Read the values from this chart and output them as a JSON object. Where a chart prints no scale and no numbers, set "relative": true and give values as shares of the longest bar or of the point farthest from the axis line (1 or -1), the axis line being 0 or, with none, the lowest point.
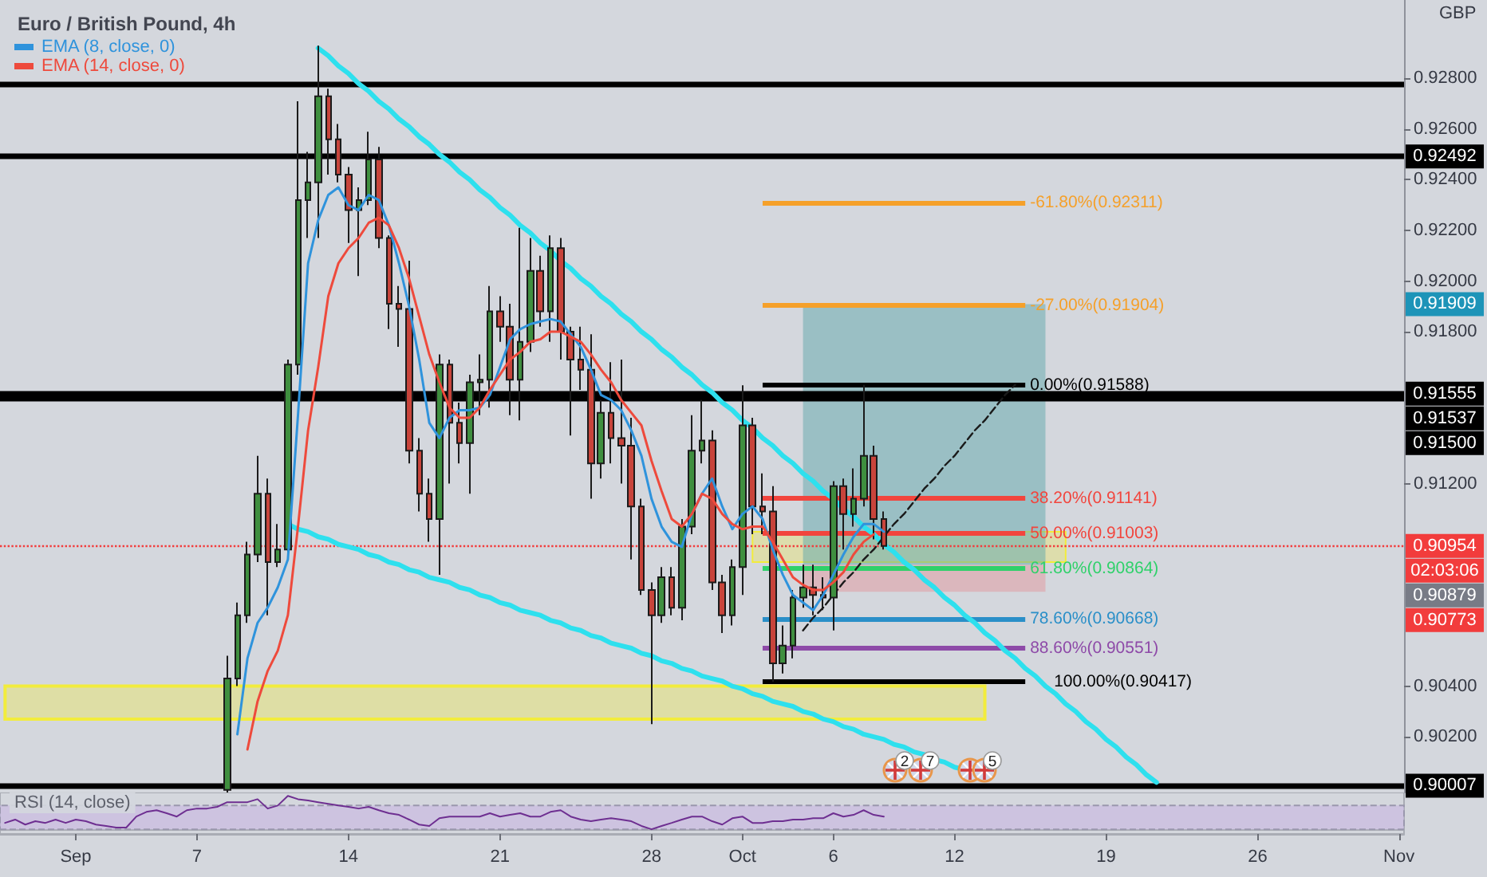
{
  "chart_data": [
    {
      "type": "candlestick",
      "title": "Euro / British Pound, 4h",
      "ylabel": "GBP",
      "legend": "top left",
      "marker": "none",
      "categories": [
        null,
        null,
        null,
        null,
        null,
        null,
        null,
        "Sep",
        null,
        null,
        null,
        null,
        null,
        null,
        null,
        null,
        null,
        null,
        null,
        "7",
        null,
        null,
        null,
        null,
        null,
        null,
        null,
        null,
        null,
        null,
        null,
        null,
        null,
        null,
        "14",
        null,
        null,
        null,
        null,
        null,
        null,
        null,
        null,
        null,
        null,
        null,
        null,
        null,
        null,
        "21",
        null,
        null,
        null,
        null,
        null,
        null,
        null,
        null,
        null,
        null,
        null,
        null,
        null,
        null,
        "28",
        null,
        null,
        null,
        null,
        null,
        null,
        null,
        null,
        "Oct",
        null,
        null,
        null,
        null,
        null,
        null,
        null,
        null,
        "6",
        null,
        null,
        null,
        null,
        null,
        null,
        null,
        null,
        null,
        null,
        null,
        "12",
        null,
        null,
        null,
        null,
        null,
        null,
        null,
        null,
        null,
        null,
        null,
        null,
        null,
        null,
        "19",
        null,
        null,
        null,
        null,
        null,
        null,
        null,
        null,
        null,
        null,
        null,
        null,
        null,
        null,
        "26",
        null,
        null,
        null,
        null,
        null,
        null,
        null,
        null,
        null,
        null,
        null,
        null,
        null,
        "Nov"
      ],
      "ylim": [
        0.8998,
        0.9311
      ],
      "yticks": [
        {
          "value": 0.902,
          "label": "0.90200"
        },
        {
          "value": 0.904,
          "label": "0.90400"
        },
        {
          "value": 0.912,
          "label": "0.91200"
        },
        {
          "value": 0.918,
          "label": "0.91800"
        },
        {
          "value": 0.92,
          "label": "0.92000"
        },
        {
          "value": 0.922,
          "label": "0.92200"
        },
        {
          "value": 0.924,
          "label": "0.92400"
        },
        {
          "value": 0.926,
          "label": "0.92600"
        },
        {
          "value": 0.928,
          "label": "0.92800"
        }
      ],
      "series": [
        {
          "ohlc": [
            null,
            null,
            null,
            null,
            null,
            null,
            null,
            null,
            null,
            null,
            null,
            null,
            null,
            null,
            null,
            null,
            null,
            null,
            null,
            null,
            null,
            null,
            [
              0.8999,
              0.9052,
              0.8998,
              0.9043
            ],
            [
              0.9043,
              0.9073,
              0.904,
              0.9068
            ],
            [
              0.9068,
              0.9097,
              0.9065,
              0.9092
            ],
            [
              0.9092,
              0.9131,
              0.9089,
              0.9116
            ],
            [
              0.9116,
              0.9122,
              0.9068,
              0.9089
            ],
            [
              0.9089,
              0.9104,
              0.9087,
              0.9094
            ],
            [
              0.9094,
              0.9169,
              0.9092,
              0.9167
            ],
            [
              0.9167,
              0.9271,
              0.9163,
              0.9232
            ],
            [
              0.9232,
              0.9251,
              0.9217,
              0.9239
            ],
            [
              0.9239,
              0.9293,
              0.9217,
              0.9273
            ],
            [
              0.9273,
              0.9276,
              0.9242,
              0.9256
            ],
            [
              0.9256,
              0.9262,
              0.9239,
              0.9242
            ],
            [
              0.9242,
              0.9245,
              0.9215,
              0.9228
            ],
            [
              0.9228,
              0.9237,
              0.9202,
              0.9232
            ],
            [
              0.9232,
              0.9259,
              0.923,
              0.9248
            ],
            [
              0.9248,
              0.9253,
              0.9213,
              0.9217
            ],
            [
              0.9217,
              0.9218,
              0.9181,
              0.9191
            ],
            [
              0.9191,
              0.9198,
              0.9174,
              0.9189
            ],
            [
              0.9189,
              0.9208,
              0.9128,
              0.9133
            ],
            [
              0.9133,
              0.9138,
              0.9109,
              0.9116
            ],
            [
              0.9116,
              0.9122,
              0.9097,
              0.9106
            ],
            [
              0.9106,
              0.9171,
              0.9084,
              0.9167
            ],
            [
              0.9167,
              0.9169,
              0.912,
              0.9144
            ],
            [
              0.9144,
              0.9152,
              0.9128,
              0.9136
            ],
            [
              0.9136,
              0.9163,
              0.9116,
              0.916
            ],
            [
              0.916,
              0.9171,
              0.9147,
              0.9161
            ],
            [
              0.9161,
              0.9198,
              0.915,
              0.9188
            ],
            [
              0.9188,
              0.9194,
              0.9176,
              0.9182
            ],
            [
              0.9182,
              0.9191,
              0.9147,
              0.9161
            ],
            [
              0.9161,
              0.9221,
              0.9145,
              0.9176
            ],
            [
              0.9176,
              0.9217,
              0.9172,
              0.9204
            ],
            [
              0.9204,
              0.921,
              0.9182,
              0.9188
            ],
            [
              0.9188,
              0.9218,
              0.9176,
              0.9213
            ],
            [
              0.9213,
              0.9217,
              0.9169,
              0.918
            ],
            [
              0.918,
              0.9182,
              0.9139,
              0.9169
            ],
            [
              0.9169,
              0.9182,
              0.9157,
              0.9165
            ],
            [
              0.9165,
              0.9179,
              0.9114,
              0.9128
            ],
            [
              0.9128,
              0.9153,
              0.9122,
              0.9148
            ],
            [
              0.9148,
              0.9168,
              0.9128,
              0.9138
            ],
            [
              0.9138,
              0.9169,
              0.912,
              0.9135
            ],
            [
              0.9135,
              0.9146,
              0.909,
              0.9111
            ],
            [
              0.9111,
              0.9114,
              0.9076,
              0.9078
            ],
            [
              0.9078,
              0.9081,
              0.9025,
              0.9068
            ],
            [
              0.9068,
              0.9087,
              0.9065,
              0.9083
            ],
            [
              0.9083,
              0.9087,
              0.9068,
              0.9071
            ],
            [
              0.9071,
              0.9106,
              0.9066,
              0.9103
            ],
            [
              0.9103,
              0.9147,
              0.91,
              0.9133
            ],
            [
              0.9133,
              0.9153,
              0.9128,
              0.9137
            ],
            [
              0.9137,
              0.9141,
              0.9078,
              0.9081
            ],
            [
              0.9081,
              0.9084,
              0.9061,
              0.9068
            ],
            [
              0.9068,
              0.909,
              0.9064,
              0.9087
            ],
            [
              0.9087,
              0.91588,
              0.9076,
              0.9143
            ],
            [
              0.9143,
              0.9146,
              0.91,
              0.9111
            ],
            [
              0.9111,
              0.9124,
              0.91,
              0.9109
            ],
            [
              0.9109,
              0.9119,
              0.90417,
              0.9049
            ],
            [
              0.9049,
              0.9064,
              0.9045,
              0.9056
            ],
            [
              0.9056,
              0.9078,
              0.9051,
              0.9075
            ],
            [
              0.9075,
              0.9088,
              0.9071,
              0.9079
            ],
            [
              0.9079,
              0.9088,
              0.9068,
              0.9076
            ],
            [
              0.9076,
              0.9083,
              0.907,
              0.9075
            ],
            [
              0.9075,
              0.9121,
              0.9062,
              0.9119
            ],
            [
              0.9119,
              0.9122,
              0.9094,
              0.9108
            ],
            [
              0.9108,
              0.9126,
              0.9103,
              0.9114
            ],
            [
              0.9114,
              0.9159,
              0.9111,
              0.9131
            ],
            [
              0.9131,
              0.9135,
              0.9098,
              0.9106
            ],
            [
              0.9106,
              0.9109,
              0.9094,
              0.90954
            ],
            null,
            null,
            null,
            null,
            null,
            null,
            null,
            null,
            null,
            null,
            null,
            null,
            null,
            null,
            null,
            null,
            null,
            null,
            null,
            null,
            null,
            null,
            null,
            null,
            null,
            null,
            null,
            null,
            null,
            null,
            null,
            null,
            null,
            null,
            null,
            null,
            null,
            null,
            null,
            null,
            null,
            null,
            null,
            null,
            null,
            null,
            null,
            null,
            null,
            null,
            null
          ],
          "colors": [
            null,
            null,
            null,
            null,
            null,
            null,
            null,
            null,
            null,
            null,
            null,
            null,
            null,
            null,
            null,
            null,
            null,
            null,
            null,
            null,
            null,
            null,
            "#3f8f3f",
            "#3f8f3f",
            "#3f8f3f",
            "#3f8f3f",
            "#c8443b",
            "#3f8f3f",
            "#3f8f3f",
            "#3f8f3f",
            "#3f8f3f",
            "#3f8f3f",
            "#c8443b",
            "#c8443b",
            "#c8443b",
            "#3f8f3f",
            "#3f8f3f",
            "#c8443b",
            "#c8443b",
            "#c8443b",
            "#c8443b",
            "#c8443b",
            "#c8443b",
            "#3f8f3f",
            "#c8443b",
            "#c8443b",
            "#3f8f3f",
            "#3f8f3f",
            "#3f8f3f",
            "#c8443b",
            "#c8443b",
            "#3f8f3f",
            "#3f8f3f",
            "#c8443b",
            "#3f8f3f",
            "#c8443b",
            "#c8443b",
            "#c8443b",
            "#c8443b",
            "#3f8f3f",
            "#c8443b",
            "#c8443b",
            "#c8443b",
            "#c8443b",
            "#c8443b",
            "#3f8f3f",
            "#c8443b",
            "#3f8f3f",
            "#3f8f3f",
            "#3f8f3f",
            "#c8443b",
            "#c8443b",
            "#3f8f3f",
            "#3f8f3f",
            "#c8443b",
            "#c8443b",
            "#c8443b",
            "#3f8f3f",
            "#3f8f3f",
            "#3f8f3f",
            "#c8443b",
            "#c8443b",
            "#3f8f3f",
            "#c8443b",
            "#3f8f3f",
            "#3f8f3f",
            "#c8443b",
            "#c8443b",
            null,
            null,
            null,
            null,
            null,
            null,
            null,
            null,
            null,
            null,
            null,
            null,
            null,
            null,
            null,
            null,
            null,
            null,
            null,
            null,
            null,
            null,
            null,
            null,
            null,
            null,
            null,
            null,
            null,
            null,
            null,
            null,
            null,
            null,
            null,
            null,
            null,
            null,
            null,
            null,
            null,
            null,
            null,
            null,
            null,
            null,
            null,
            null,
            null,
            null,
            null
          ]
        },
        {
          "type": "line",
          "name": "EMA (8, close, 0)",
          "color": "#2f93dc",
          "values": [
            null,
            null,
            null,
            null,
            null,
            null,
            null,
            null,
            null,
            null,
            null,
            null,
            null,
            null,
            null,
            null,
            null,
            null,
            null,
            null,
            null,
            null,
            null,
            0.9021,
            0.9051,
            0.9065,
            0.9071,
            0.9079,
            0.909,
            0.9147,
            0.9207,
            0.9224,
            0.9234,
            0.9237,
            0.923,
            0.9228,
            0.9234,
            0.9232,
            0.9222,
            0.9207,
            0.919,
            0.9169,
            0.9144,
            0.9138,
            0.9146,
            0.9149,
            0.9149,
            0.915,
            0.9155,
            0.9166,
            0.9177,
            0.9181,
            0.9183,
            0.9184,
            0.9185,
            0.9184,
            0.9179,
            0.9174,
            0.9165,
            0.9155,
            0.9153,
            0.9149,
            0.9141,
            0.9131,
            0.9114,
            0.9103,
            0.9097,
            0.9095,
            0.9108,
            0.9116,
            0.9122,
            0.9111,
            0.9102,
            0.9108,
            0.9111,
            0.9106,
            0.9094,
            0.9084,
            0.9076,
            0.9073,
            0.907,
            0.9076,
            0.9084,
            0.9092,
            0.9099,
            0.9104,
            0.9104,
            0.9101,
            null,
            null,
            null,
            null,
            null,
            null,
            null,
            null,
            null,
            null,
            null,
            null,
            null,
            null,
            null,
            null,
            null,
            null,
            null,
            null,
            null,
            null,
            null,
            null,
            null,
            null,
            null,
            null,
            null,
            null,
            null,
            null,
            null,
            null,
            null,
            null,
            null,
            null,
            null,
            null,
            null,
            null,
            null,
            null,
            null,
            null,
            null,
            null,
            null,
            null,
            null
          ]
        },
        {
          "type": "line",
          "name": "EMA (14, close, 0)",
          "color": "#ee4a3c",
          "values": [
            null,
            null,
            null,
            null,
            null,
            null,
            null,
            null,
            null,
            null,
            null,
            null,
            null,
            null,
            null,
            null,
            null,
            null,
            null,
            null,
            null,
            null,
            null,
            null,
            0.9015,
            0.9034,
            0.9046,
            0.9054,
            0.9068,
            0.9103,
            0.9141,
            0.9166,
            0.9194,
            0.9207,
            0.9213,
            0.9217,
            0.9223,
            0.9225,
            0.9222,
            0.9213,
            0.9201,
            0.9186,
            0.9171,
            0.916,
            0.915,
            0.9146,
            0.9146,
            0.915,
            0.9157,
            0.9163,
            0.9169,
            0.9172,
            0.9176,
            0.9177,
            0.918,
            0.918,
            0.9178,
            0.9176,
            0.9171,
            0.9165,
            0.916,
            0.9153,
            0.9148,
            0.9143,
            0.9129,
            0.9117,
            0.9106,
            0.9103,
            0.9108,
            0.9116,
            0.9114,
            0.9108,
            0.9104,
            0.9102,
            0.9103,
            0.9103,
            0.9097,
            0.909,
            0.9083,
            0.908,
            0.9078,
            0.9078,
            0.9081,
            0.9085,
            0.9092,
            0.9097,
            0.91,
            null,
            null,
            null,
            null,
            null,
            null,
            null,
            null,
            null,
            null,
            null,
            null,
            null,
            null,
            null,
            null,
            null,
            null,
            null,
            null,
            null,
            null,
            null,
            null,
            null,
            null,
            null,
            null,
            null,
            null,
            null,
            null,
            null,
            null,
            null,
            null,
            null,
            null,
            null,
            null,
            null,
            null,
            null,
            null,
            null,
            null,
            null,
            null,
            null,
            null,
            null,
            null
          ]
        },
        {
          "type": "line",
          "color": "#2ee0ee",
          "values": [
            null,
            null,
            null,
            null,
            null,
            null,
            null,
            null,
            null,
            null,
            null,
            null,
            null,
            null,
            null,
            null,
            null,
            null,
            null,
            null,
            null,
            null,
            null,
            null,
            null,
            null,
            null,
            null,
            null,
            null,
            null,
            0.9292,
            0.9289,
            0.9285,
            0.9282,
            0.9278,
            0.9275,
            0.9271,
            0.9268,
            0.9264,
            0.9261,
            0.9257,
            0.9254,
            0.925,
            0.9247,
            0.9243,
            0.924,
            0.9236,
            0.9233,
            0.9229,
            0.9226,
            0.9222,
            0.9219,
            0.9215,
            0.9212,
            0.9208,
            0.9205,
            0.9201,
            0.9198,
            0.9194,
            0.9191,
            0.9187,
            0.9184,
            0.918,
            0.9177,
            0.9173,
            0.917,
            0.9166,
            0.9163,
            0.9159,
            0.9156,
            0.9152,
            0.9149,
            0.9145,
            0.9142,
            0.9138,
            0.9135,
            0.9131,
            0.9128,
            0.9124,
            0.9121,
            0.9117,
            0.9114,
            0.911,
            0.9107,
            0.9103,
            0.91,
            0.9096,
            0.9093,
            0.9089,
            0.9086,
            0.9082,
            0.9079,
            0.9075,
            0.9072,
            0.9068,
            0.9065,
            0.9061,
            0.9058,
            0.9054,
            0.9051,
            0.9047,
            0.9044,
            0.904,
            0.9037,
            0.9033,
            0.903,
            0.9026,
            0.9023,
            0.9019,
            0.9016,
            0.9012,
            0.9009,
            0.9005,
            0.9002,
            null,
            null,
            null,
            null,
            null,
            null,
            null,
            null,
            null,
            null,
            null,
            null,
            null,
            null,
            null,
            null,
            null,
            null,
            null,
            null,
            null,
            null,
            null,
            null
          ]
        },
        {
          "type": "line",
          "color": "#2ee0ee",
          "values": [
            null,
            null,
            null,
            null,
            null,
            null,
            null,
            null,
            null,
            null,
            null,
            null,
            null,
            null,
            null,
            null,
            null,
            null,
            null,
            null,
            null,
            null,
            null,
            null,
            null,
            null,
            null,
            null,
            0.9104,
            0.9102,
            0.9101,
            0.9099,
            0.9098,
            0.9096,
            0.9095,
            0.9094,
            0.9092,
            0.9091,
            0.9089,
            0.9088,
            0.9086,
            0.9085,
            0.9083,
            0.9082,
            0.9081,
            0.9079,
            0.9078,
            0.9076,
            0.9075,
            0.9073,
            0.9072,
            0.907,
            0.9069,
            0.9068,
            0.9066,
            0.9065,
            0.9063,
            0.9062,
            0.906,
            0.9059,
            0.9057,
            0.9056,
            0.9055,
            0.9053,
            0.9052,
            0.905,
            0.9049,
            0.9047,
            0.9046,
            0.9044,
            0.9043,
            0.9042,
            0.904,
            0.9039,
            0.9037,
            0.9036,
            0.9034,
            0.9033,
            0.9032,
            0.903,
            0.9029,
            0.9027,
            0.9026,
            0.9024,
            0.9023,
            0.9021,
            0.902,
            0.9019,
            0.9017,
            0.9016,
            0.9014,
            0.9013,
            0.9011,
            0.901,
            0.9008,
            0.9007,
            0.9006,
            null,
            null,
            null,
            null,
            null,
            null,
            null,
            null,
            null,
            null,
            null,
            null,
            null,
            null,
            null,
            null,
            null,
            null,
            null,
            null,
            null,
            null,
            null,
            null,
            null,
            null,
            null,
            null,
            null,
            null,
            null,
            null,
            null,
            null,
            null,
            null,
            null,
            null,
            null,
            null,
            null,
            null
          ]
        },
        {
          "type": "line",
          "color": "#1a1a1a",
          "line_style": "dashed",
          "values": [
            null,
            null,
            null,
            null,
            null,
            null,
            null,
            null,
            null,
            null,
            null,
            null,
            null,
            null,
            null,
            null,
            null,
            null,
            null,
            null,
            null,
            null,
            null,
            null,
            null,
            null,
            null,
            null,
            null,
            null,
            null,
            null,
            null,
            null,
            null,
            null,
            null,
            null,
            null,
            null,
            null,
            null,
            null,
            null,
            null,
            null,
            null,
            null,
            null,
            null,
            null,
            null,
            null,
            null,
            null,
            null,
            null,
            null,
            null,
            null,
            null,
            null,
            null,
            null,
            null,
            null,
            null,
            null,
            null,
            null,
            null,
            null,
            null,
            null,
            null,
            null,
            null,
            null,
            null,
            0.9062,
            0.9067,
            0.9071,
            0.9076,
            0.9081,
            0.9085,
            0.909,
            0.9094,
            0.9099,
            0.9104,
            0.9108,
            0.9113,
            0.9118,
            0.9122,
            0.9127,
            0.9131,
            0.9136,
            0.9141,
            0.9145,
            0.915,
            0.9155,
            0.9159,
            null,
            null,
            null,
            null,
            null,
            null,
            null,
            null,
            null,
            null,
            null,
            null,
            null,
            null,
            null,
            null,
            null,
            null,
            null,
            null,
            null,
            null,
            null,
            null,
            null,
            null,
            null,
            null,
            null,
            null,
            null,
            null,
            null,
            null,
            null,
            null,
            null,
            null
          ]
        }
      ],
      "ref_lines": [
        {
          "axis": "y",
          "value": 0.9278,
          "color": "#000000"
        },
        {
          "axis": "y",
          "value": 0.92492,
          "label": "0.92492",
          "color": "#000000"
        },
        {
          "axis": "y",
          "value": 0.91555,
          "label": "0.91555",
          "color": "#000000"
        },
        {
          "axis": "y",
          "value": 0.91537,
          "label": "0.91537",
          "color": "#000000"
        },
        {
          "axis": "y",
          "value": 0.90007,
          "label": "0.90007",
          "color": "#000000"
        },
        {
          "axis": "y",
          "value": 0.90954,
          "label": "0.90954",
          "color": "#f23c3c",
          "line_style": "dotted"
        },
        {
          "axis": "y",
          "value": 0.92311,
          "label": "-61.80%(0.92311)",
          "color": "#f5a02a"
        },
        {
          "axis": "y",
          "value": 0.91904,
          "label": "-27.00%(0.91904)",
          "color": "#f5a02a"
        },
        {
          "axis": "y",
          "value": 0.91588,
          "label": "0.00%(0.91588)",
          "color": "#000000"
        },
        {
          "axis": "y",
          "value": 0.91141,
          "label": "38.20%(0.91141)",
          "color": "#f2453d"
        },
        {
          "axis": "y",
          "value": 0.91003,
          "label": "50.00%(0.91003)",
          "color": "#f2453d"
        },
        {
          "axis": "y",
          "value": 0.90864,
          "label": "61.80%(0.90864)",
          "color": "#2fd16a"
        },
        {
          "axis": "y",
          "value": 0.90668,
          "label": "78.60%(0.90668)",
          "color": "#2a8fc8"
        },
        {
          "axis": "y",
          "value": 0.90551,
          "label": "88.60%(0.90551)",
          "color": "#8e4aa8"
        },
        {
          "axis": "y",
          "value": 0.90417,
          "label": "100.00%(0.90417)",
          "color": "#000000"
        }
      ],
      "bands": [
        {
          "axis": "y",
          "from": 0.9027,
          "to": 0.904,
          "color": "#f2ec3c"
        },
        {
          "axis": "y",
          "from": 0.9089,
          "to": 0.9101,
          "color": "#f2ec3c"
        },
        {
          "axis": "y",
          "from": 0.90879,
          "to": 0.91909,
          "color": "#5fa8ab"
        },
        {
          "axis": "y",
          "from": 0.90773,
          "to": 0.90879,
          "color": "#e2979e"
        }
      ],
      "annotations": [
        "0.91909",
        "0.91500",
        "0.90879",
        "0.90773",
        "02:03:06",
        "2",
        "7",
        "5"
      ]
    },
    {
      "type": "line",
      "title": "RSI (14, close)",
      "relative": true,
      "marker": "none",
      "categories": [
        null,
        null,
        null,
        null,
        null,
        null,
        null,
        null,
        null,
        null,
        null,
        null,
        null,
        null,
        null,
        null,
        null,
        null,
        null,
        null,
        null,
        null,
        null,
        null,
        null,
        null,
        null,
        null,
        null,
        null,
        null,
        null,
        null,
        null,
        null,
        null,
        null,
        null,
        null,
        null,
        null,
        null,
        null,
        null,
        null,
        null,
        null,
        null,
        null,
        null,
        null,
        null,
        null,
        null,
        null,
        null,
        null,
        null,
        null,
        null,
        null,
        null,
        null,
        null,
        null,
        null,
        null,
        null,
        null,
        null,
        null,
        null,
        null,
        null,
        null,
        null,
        null,
        null,
        null,
        null,
        null,
        null,
        null,
        null,
        null,
        null,
        null,
        null,
        null,
        null,
        null,
        null,
        null,
        null,
        null,
        null,
        null,
        null,
        null,
        null,
        null,
        null,
        null,
        null,
        null,
        null,
        null,
        null,
        null,
        null,
        null,
        null,
        null,
        null,
        null,
        null,
        null,
        null,
        null,
        null,
        null,
        null,
        null,
        null,
        null,
        null,
        null,
        null,
        null,
        null,
        null,
        null,
        null,
        null,
        null,
        null,
        null,
        null,
        null
      ],
      "series": [
        {
          "color": "#6e2f91",
          "values": [
            0.19,
            0.29,
            0.14,
            0.24,
            0.19,
            0.29,
            0.19,
            0.29,
            0.24,
            0.14,
            0.1,
            0.05,
            0.05,
            0.38,
            0.52,
            0.57,
            0.48,
            0.38,
            0.57,
            0.62,
            0.62,
            0.67,
            0.81,
            0.81,
            0.81,
            0.9,
            0.62,
            0.71,
            1,
            0.9,
            0.86,
            0.81,
            0.76,
            0.71,
            0.67,
            0.62,
            0.67,
            0.57,
            0.48,
            0.43,
            0.29,
            0.14,
            0.1,
            0.33,
            0.38,
            0.38,
            0.38,
            0.38,
            0.48,
            0.38,
            0.43,
            0.48,
            0.38,
            0.38,
            0.52,
            0.57,
            0.38,
            0.29,
            0.24,
            0.29,
            0.33,
            0.29,
            0.24,
            0.1,
            0,
            0.1,
            0.19,
            0.29,
            0.38,
            0.38,
            0.24,
            0.14,
            0.33,
            0.38,
            0.19,
            0.19,
            0.24,
            0.24,
            0.29,
            0.29,
            0.33,
            0.33,
            0.48,
            0.38,
            0.43,
            0.57,
            0.43,
            0.38,
            null,
            null,
            null,
            null,
            null,
            null,
            null,
            null,
            null,
            null,
            null,
            null,
            null,
            null,
            null,
            null,
            null,
            null,
            null,
            null,
            null,
            null,
            null,
            null,
            null,
            null,
            null,
            null,
            null,
            null,
            null,
            null,
            null,
            null,
            null,
            null,
            null,
            null,
            null,
            null,
            null,
            null,
            null,
            null,
            null,
            null,
            null,
            null,
            null,
            null,
            null
          ]
        }
      ],
      "bands": [
        {
          "axis": "y",
          "from": 0,
          "to": 0.71,
          "color": "#c8b5e3"
        }
      ]
    }
  ]
}
